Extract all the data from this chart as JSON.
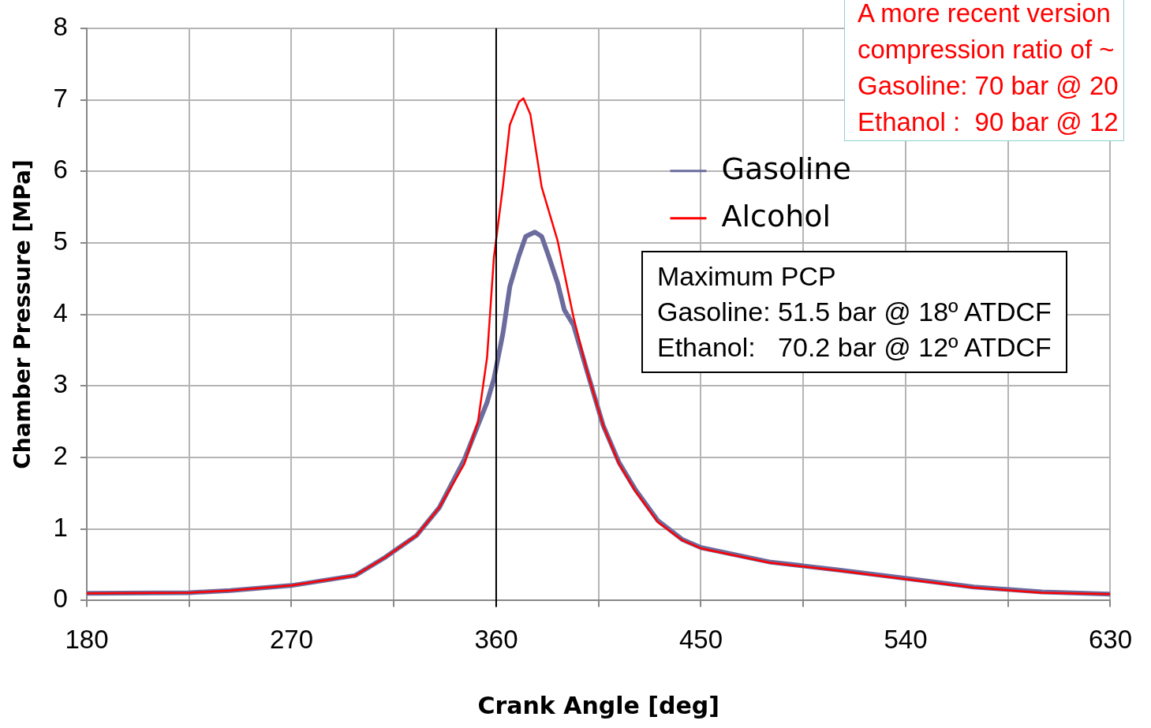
{
  "chart_data": {
    "type": "line",
    "xlabel": "Crank Angle [deg]",
    "ylabel": "Chamber Pressure [MPa]",
    "xlim": [
      180,
      630
    ],
    "xticks": [
      180,
      {
        "value": 225,
        "label": null
      },
      270,
      {
        "value": 315,
        "label": null
      },
      360,
      {
        "value": 405,
        "label": null
      },
      450,
      {
        "value": 495,
        "label": null
      },
      540,
      {
        "value": 585,
        "label": null
      },
      630
    ],
    "ylim": [
      0,
      8
    ],
    "yticks": [
      0,
      1,
      2,
      3,
      4,
      5,
      6,
      7,
      8
    ],
    "grid": true,
    "legend": "top right",
    "marker": "none",
    "line_style": "solid",
    "ref_lines": [
      {
        "axis": "x",
        "value": 360,
        "color": "#000000"
      }
    ],
    "annotations": [
      "A more recent version",
      "compression ratio of ~",
      "Gasoline: 70 bar @ 20",
      "Ethanol :  90 bar @ 12",
      "Maximum PCP",
      "Gasoline: 51.5 bar @ 18º ATDCF",
      "Ethanol:   70.2 bar @ 12º ATDCF"
    ],
    "series": [
      {
        "name": "Gasoline",
        "color": "#6b6b9e",
        "x": [
          180,
          225,
          243,
          270,
          298,
          311,
          325,
          335,
          346,
          352,
          356,
          359,
          363,
          366,
          370,
          373,
          377,
          380,
          383,
          387,
          390,
          394,
          400,
          407,
          414,
          421,
          431,
          442,
          450,
          480,
          510,
          540,
          570,
          600,
          630
        ],
        "values": [
          0.1,
          0.11,
          0.14,
          0.21,
          0.35,
          0.6,
          0.91,
          1.3,
          1.97,
          2.45,
          2.77,
          3.1,
          3.74,
          4.39,
          4.82,
          5.09,
          5.15,
          5.09,
          4.82,
          4.44,
          4.06,
          3.85,
          3.2,
          2.45,
          1.93,
          1.56,
          1.12,
          0.85,
          0.74,
          0.54,
          0.43,
          0.31,
          0.19,
          0.12,
          0.09
        ]
      },
      {
        "name": "Alcohol",
        "color": "#ff0000",
        "x": [
          180,
          225,
          243,
          270,
          298,
          311,
          325,
          335,
          346,
          352,
          356,
          359,
          363,
          366,
          370,
          372,
          375,
          380,
          387,
          394,
          400,
          407,
          414,
          421,
          431,
          442,
          450,
          480,
          510,
          540,
          570,
          600,
          630
        ],
        "values": [
          0.1,
          0.11,
          0.14,
          0.21,
          0.35,
          0.6,
          0.91,
          1.3,
          1.91,
          2.5,
          3.4,
          4.8,
          5.8,
          6.65,
          6.97,
          7.02,
          6.8,
          5.78,
          5.03,
          3.96,
          3.2,
          2.45,
          1.91,
          1.54,
          1.1,
          0.84,
          0.73,
          0.53,
          0.42,
          0.3,
          0.18,
          0.11,
          0.09
        ]
      }
    ]
  }
}
